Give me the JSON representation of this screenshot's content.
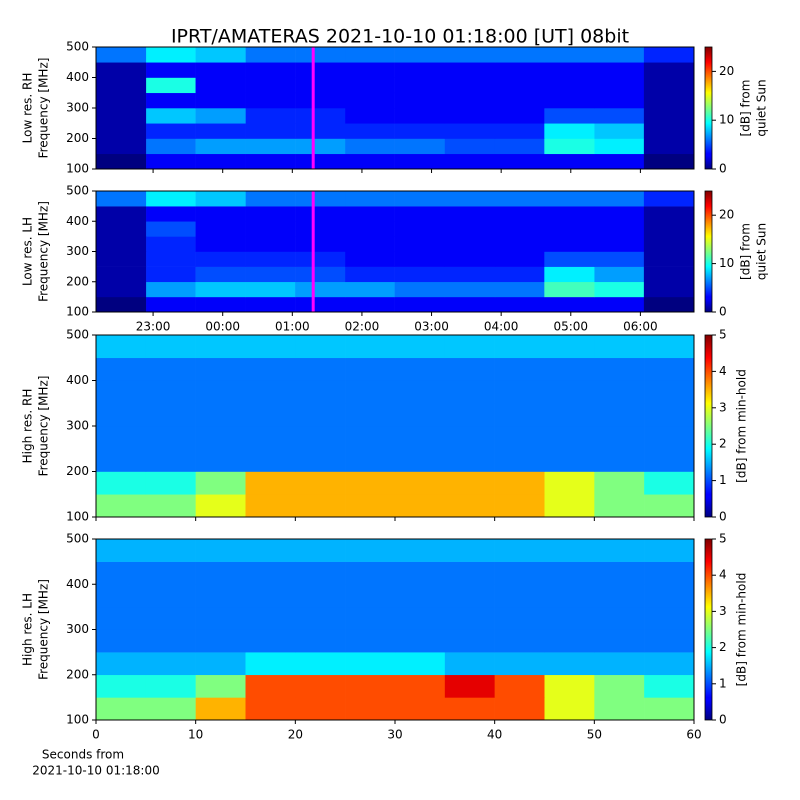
{
  "chart_data": [
    {
      "type": "heatmap",
      "title": "IPRT/AMATERAS 2021-10-10 01:18:00 [UT]   08bit",
      "ylabel": [
        "Low res. RH",
        "Frequency [MHz]"
      ],
      "colorbar_label": [
        "[dB] from",
        "quiet Sun"
      ],
      "xlim": [
        22.18,
        30.77
      ],
      "ylim": [
        100,
        500
      ],
      "yticks": [
        100,
        200,
        300,
        400,
        500
      ],
      "xticks": [
        23,
        24,
        25,
        26,
        27,
        28,
        29,
        30
      ],
      "tick_labels": false,
      "clim": [
        0,
        25
      ],
      "cticks": [
        0,
        10,
        20
      ],
      "marker_x": 25.3,
      "marker_color": "#ff00ff",
      "x_edges": [
        22.18,
        22.9,
        23.61,
        24.33,
        25.04,
        25.76,
        26.47,
        27.19,
        27.91,
        28.62,
        29.34,
        30.05,
        30.77
      ],
      "y_edges": [
        100,
        150,
        200,
        250,
        300,
        350,
        400,
        450,
        500
      ],
      "z": [
        [
          0,
          3,
          3,
          3,
          3,
          3,
          3,
          3,
          3,
          3,
          3,
          0
        ],
        [
          1,
          6,
          7,
          7,
          7,
          6,
          6,
          5,
          5,
          10,
          9,
          1
        ],
        [
          1,
          4,
          4,
          4,
          4,
          4,
          4,
          4,
          4,
          9,
          8,
          1
        ],
        [
          1,
          8,
          7,
          4,
          4,
          3,
          3,
          3,
          3,
          5,
          5,
          1
        ],
        [
          1,
          3,
          3,
          3,
          3,
          3,
          3,
          3,
          3,
          3,
          3,
          1
        ],
        [
          1,
          10,
          3,
          3,
          3,
          3,
          3,
          3,
          3,
          3,
          3,
          1
        ],
        [
          1,
          3,
          3,
          3,
          3,
          3,
          3,
          3,
          3,
          3,
          3,
          1
        ],
        [
          6,
          9,
          8,
          6,
          6,
          6,
          6,
          6,
          6,
          6,
          6,
          4
        ]
      ]
    },
    {
      "type": "heatmap",
      "ylabel": [
        "Low res. LH",
        "Frequency [MHz]"
      ],
      "colorbar_label": [
        "[dB] from",
        "quiet Sun"
      ],
      "xlim": [
        22.18,
        30.77
      ],
      "ylim": [
        100,
        500
      ],
      "yticks": [
        100,
        200,
        300,
        400,
        500
      ],
      "xticks": [
        {
          "value": 23,
          "label": "23:00"
        },
        {
          "value": 24,
          "label": "00:00"
        },
        {
          "value": 25,
          "label": "01:00"
        },
        {
          "value": 26,
          "label": "02:00"
        },
        {
          "value": 27,
          "label": "03:00"
        },
        {
          "value": 28,
          "label": "04:00"
        },
        {
          "value": 29,
          "label": "05:00"
        },
        {
          "value": 30,
          "label": "06:00"
        }
      ],
      "clim": [
        0,
        25
      ],
      "cticks": [
        0,
        10,
        20
      ],
      "marker_x": 25.3,
      "marker_color": "#ff00ff",
      "x_edges": [
        22.18,
        22.9,
        23.61,
        24.33,
        25.04,
        25.76,
        26.47,
        27.19,
        27.91,
        28.62,
        29.34,
        30.05,
        30.77
      ],
      "y_edges": [
        100,
        150,
        200,
        250,
        300,
        350,
        400,
        450,
        500
      ],
      "z": [
        [
          0,
          3,
          3,
          3,
          3,
          3,
          3,
          3,
          3,
          3,
          3,
          0
        ],
        [
          1,
          7,
          8,
          8,
          7,
          7,
          6,
          6,
          6,
          11,
          10,
          1
        ],
        [
          1,
          4,
          5,
          5,
          5,
          4,
          4,
          4,
          4,
          9,
          7,
          1
        ],
        [
          1,
          4,
          4,
          4,
          4,
          3,
          3,
          3,
          3,
          5,
          5,
          1
        ],
        [
          1,
          4,
          3,
          3,
          3,
          3,
          3,
          3,
          3,
          3,
          3,
          1
        ],
        [
          1,
          5,
          3,
          3,
          3,
          3,
          3,
          3,
          3,
          3,
          3,
          1
        ],
        [
          1,
          3,
          3,
          3,
          3,
          3,
          3,
          3,
          3,
          3,
          3,
          1
        ],
        [
          6,
          9,
          8,
          6,
          6,
          6,
          6,
          6,
          6,
          6,
          6,
          4
        ]
      ]
    },
    {
      "type": "heatmap",
      "ylabel": [
        "High res. RH",
        "Frequency [MHz]"
      ],
      "colorbar_label": [
        "[dB] from min-hold"
      ],
      "xlim": [
        0,
        60
      ],
      "ylim": [
        100,
        500
      ],
      "yticks": [
        100,
        200,
        300,
        400,
        500
      ],
      "xticks": [
        0,
        10,
        20,
        30,
        40,
        50,
        60
      ],
      "tick_labels": false,
      "clim": [
        0,
        5
      ],
      "cticks": [
        0,
        1,
        2,
        3,
        4,
        5
      ],
      "x_edges": [
        0,
        5,
        10,
        15,
        20,
        25,
        30,
        35,
        40,
        45,
        50,
        55,
        60
      ],
      "y_edges": [
        100,
        150,
        200,
        250,
        300,
        350,
        400,
        450,
        500
      ],
      "z": [
        [
          2.5,
          2.5,
          3,
          3.5,
          3.5,
          3.5,
          3.5,
          3.5,
          3.5,
          3,
          2.5,
          2.5
        ],
        [
          2,
          2,
          2.5,
          3.5,
          3.5,
          3.5,
          3.5,
          3.5,
          3.5,
          3,
          2.5,
          2
        ],
        [
          1.2,
          1.2,
          1.2,
          1.2,
          1.2,
          1.2,
          1.2,
          1.2,
          1.2,
          1.2,
          1.2,
          1.2
        ],
        [
          1.2,
          1.2,
          1.2,
          1.2,
          1.2,
          1.2,
          1.2,
          1.2,
          1.2,
          1.2,
          1.2,
          1.2
        ],
        [
          1.2,
          1.2,
          1.2,
          1.2,
          1.2,
          1.2,
          1.2,
          1.2,
          1.2,
          1.2,
          1.2,
          1.2
        ],
        [
          1.2,
          1.2,
          1.2,
          1.2,
          1.2,
          1.2,
          1.2,
          1.2,
          1.2,
          1.2,
          1.2,
          1.2
        ],
        [
          1.2,
          1.2,
          1.2,
          1.2,
          1.2,
          1.2,
          1.2,
          1.2,
          1.2,
          1.2,
          1.2,
          1.2
        ],
        [
          1.6,
          1.6,
          1.6,
          1.6,
          1.6,
          1.6,
          1.6,
          1.6,
          1.6,
          1.6,
          1.6,
          1.6
        ]
      ]
    },
    {
      "type": "heatmap",
      "ylabel": [
        "High res. LH",
        "Frequency [MHz]"
      ],
      "colorbar_label": [
        "[dB] from min-hold"
      ],
      "xlabel": [
        "Seconds from",
        "2021-10-10 01:18:00"
      ],
      "xlim": [
        0,
        60
      ],
      "ylim": [
        100,
        500
      ],
      "yticks": [
        100,
        200,
        300,
        400,
        500
      ],
      "xticks": [
        0,
        10,
        20,
        30,
        40,
        50,
        60
      ],
      "clim": [
        0,
        5
      ],
      "cticks": [
        0,
        1,
        2,
        3,
        4,
        5
      ],
      "x_edges": [
        0,
        5,
        10,
        15,
        20,
        25,
        30,
        35,
        40,
        45,
        50,
        55,
        60
      ],
      "y_edges": [
        100,
        150,
        200,
        250,
        300,
        350,
        400,
        450,
        500
      ],
      "z": [
        [
          2.5,
          2.5,
          3.5,
          4,
          4,
          4,
          4,
          4,
          4,
          3,
          2.5,
          2.5
        ],
        [
          2,
          2,
          2.5,
          4,
          4,
          4,
          4,
          4.5,
          4,
          3,
          2.5,
          2
        ],
        [
          1.5,
          1.5,
          1.5,
          1.8,
          1.8,
          1.8,
          1.8,
          1.5,
          1.5,
          1.5,
          1.5,
          1.5
        ],
        [
          1.2,
          1.2,
          1.2,
          1.2,
          1.2,
          1.2,
          1.2,
          1.2,
          1.2,
          1.2,
          1.2,
          1.2
        ],
        [
          1.2,
          1.2,
          1.2,
          1.2,
          1.2,
          1.2,
          1.2,
          1.2,
          1.2,
          1.2,
          1.2,
          1.2
        ],
        [
          1.2,
          1.2,
          1.2,
          1.2,
          1.2,
          1.2,
          1.2,
          1.2,
          1.2,
          1.2,
          1.2,
          1.2
        ],
        [
          1.2,
          1.2,
          1.2,
          1.2,
          1.2,
          1.2,
          1.2,
          1.2,
          1.2,
          1.2,
          1.2,
          1.2
        ],
        [
          1.5,
          1.5,
          1.5,
          1.5,
          1.5,
          1.5,
          1.5,
          1.5,
          1.5,
          1.5,
          1.5,
          1.5
        ]
      ]
    }
  ]
}
